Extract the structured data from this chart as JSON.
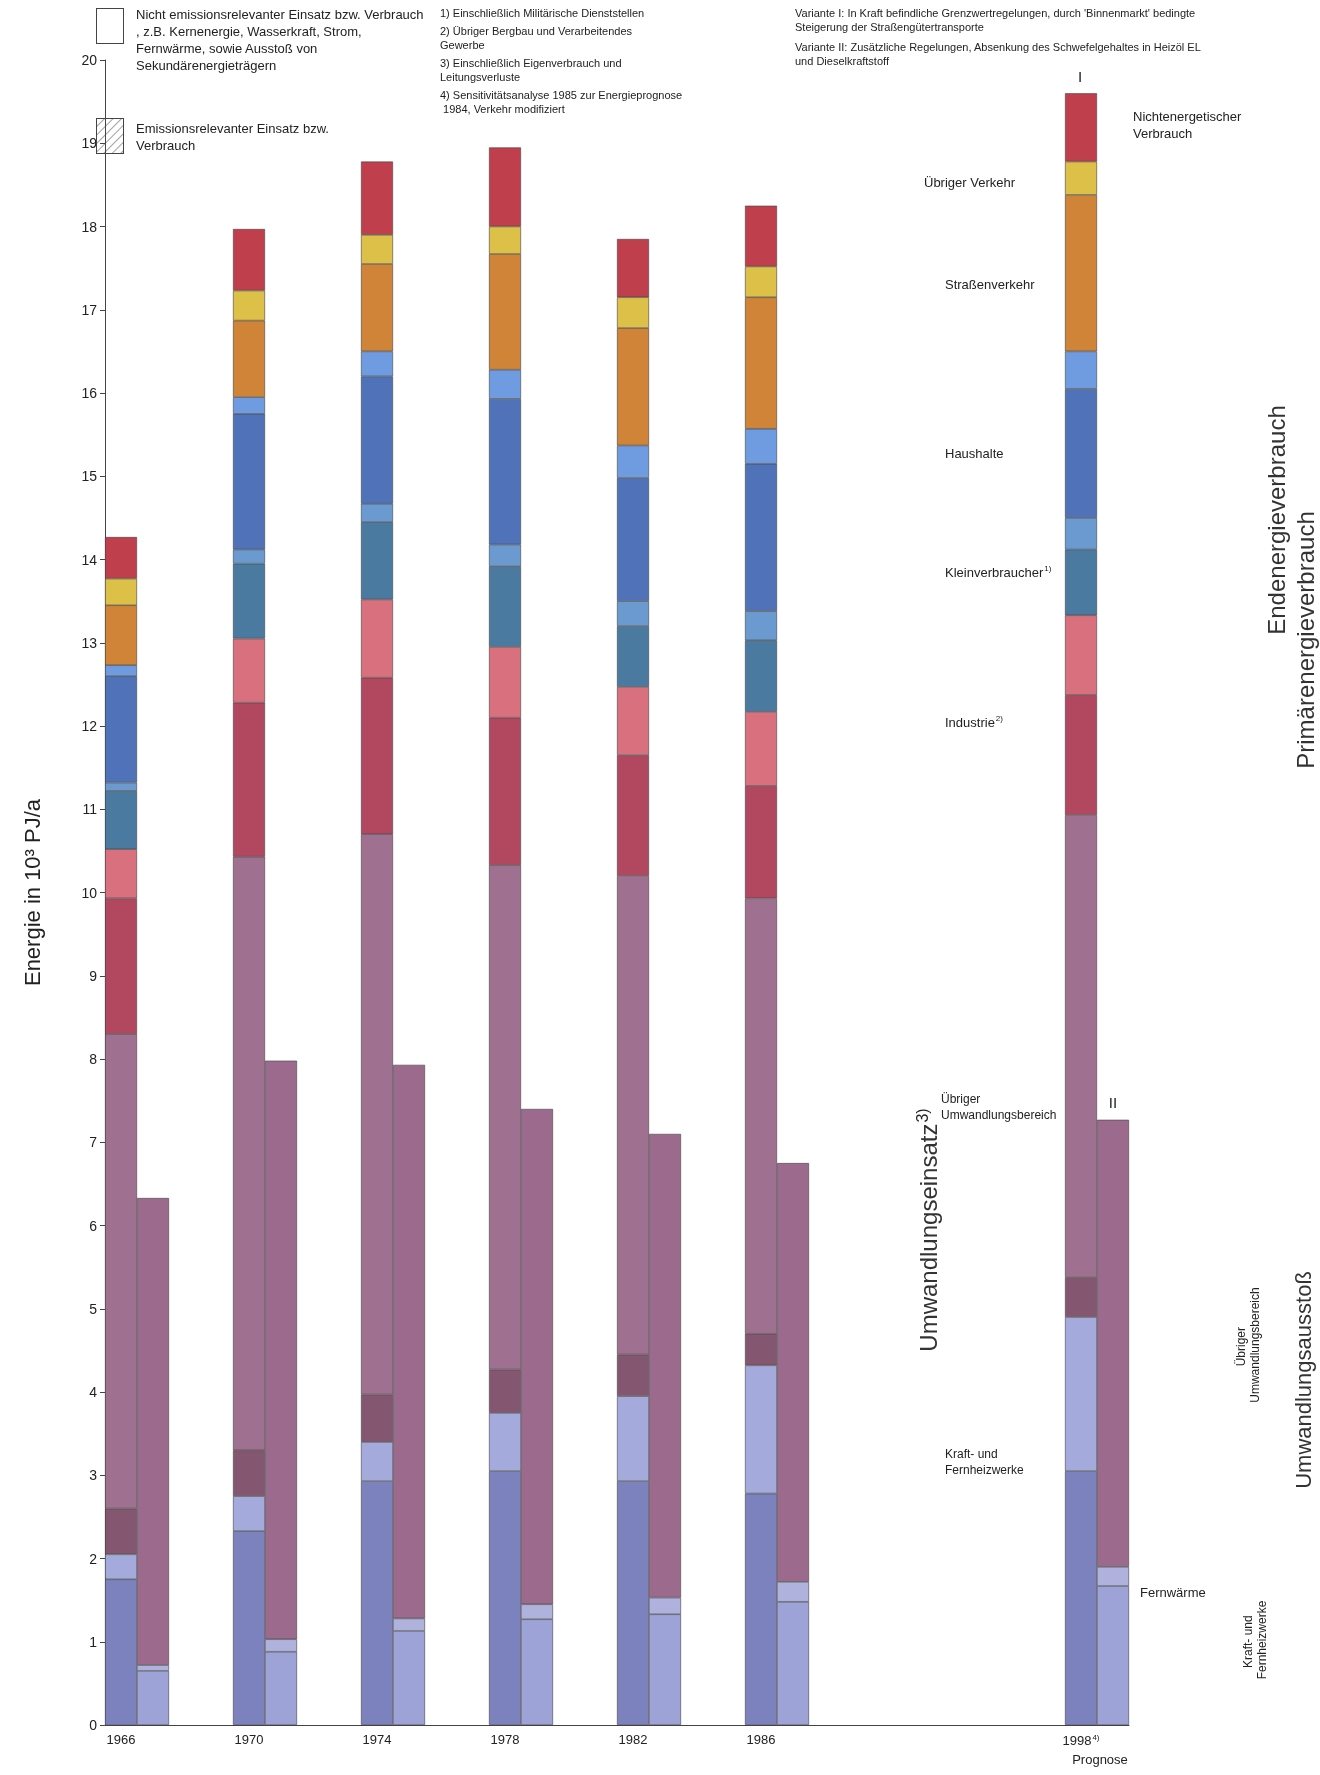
{
  "chart_data": {
    "type": "bar",
    "stacked": true,
    "ylabel": "Energie in 10³ PJ/a",
    "ylim": [
      0,
      20
    ],
    "yticks": [
      0,
      1,
      2,
      3,
      4,
      5,
      6,
      7,
      8,
      9,
      10,
      11,
      12,
      13,
      14,
      15,
      16,
      17,
      18,
      19,
      20
    ],
    "categories": [
      "1966",
      null,
      null,
      null,
      "1970",
      null,
      null,
      null,
      "1974",
      null,
      null,
      null,
      "1978",
      null,
      null,
      null,
      "1982",
      null,
      null,
      null,
      "1986",
      null,
      null,
      null,
      null,
      null,
      null,
      null,
      null,
      null,
      "1998$^{4)}$",
      null
    ],
    "series": [
      {
        "color": "#7b82bd",
        "values": [
          1.75,
          null,
          null,
          null,
          2.33,
          null,
          null,
          null,
          2.93,
          null,
          null,
          null,
          3.05,
          null,
          null,
          null,
          2.93,
          null,
          null,
          null,
          2.78,
          null,
          null,
          null,
          null,
          null,
          null,
          null,
          null,
          null,
          3.05,
          null
        ]
      },
      {
        "color": "#a4aadb",
        "values": [
          0.3,
          null,
          null,
          null,
          0.42,
          null,
          null,
          null,
          0.47,
          null,
          null,
          null,
          0.7,
          null,
          null,
          null,
          1.02,
          null,
          null,
          null,
          1.54,
          null,
          null,
          null,
          null,
          null,
          null,
          null,
          null,
          null,
          1.85,
          null
        ]
      },
      {
        "color": "#85566f",
        "values": [
          0.55,
          null,
          null,
          null,
          0.55,
          null,
          null,
          null,
          0.57,
          null,
          null,
          null,
          0.52,
          null,
          null,
          null,
          0.5,
          null,
          null,
          null,
          0.38,
          null,
          null,
          null,
          null,
          null,
          null,
          null,
          null,
          null,
          0.48,
          null
        ]
      },
      {
        "color": "#a07090",
        "values": [
          5.7,
          null,
          null,
          null,
          7.13,
          null,
          null,
          null,
          6.73,
          null,
          null,
          null,
          6.06,
          null,
          null,
          null,
          5.75,
          null,
          null,
          null,
          5.23,
          null,
          null,
          null,
          null,
          null,
          null,
          null,
          null,
          null,
          5.55,
          null
        ]
      },
      {
        "color": "#b24860",
        "values": [
          1.63,
          null,
          null,
          null,
          1.85,
          null,
          null,
          null,
          1.88,
          null,
          null,
          null,
          1.77,
          null,
          null,
          null,
          1.45,
          null,
          null,
          null,
          1.35,
          null,
          null,
          null,
          null,
          null,
          null,
          null,
          null,
          null,
          1.44,
          null
        ]
      },
      {
        "color": "#d8707e",
        "values": [
          0.59,
          null,
          null,
          null,
          0.77,
          null,
          null,
          null,
          0.94,
          null,
          null,
          null,
          0.85,
          null,
          null,
          null,
          0.82,
          null,
          null,
          null,
          0.89,
          null,
          null,
          null,
          null,
          null,
          null,
          null,
          null,
          null,
          0.96,
          null
        ]
      },
      {
        "color": "#4a7aa0",
        "values": [
          0.7,
          null,
          null,
          null,
          0.9,
          null,
          null,
          null,
          0.93,
          null,
          null,
          null,
          0.97,
          null,
          null,
          null,
          0.73,
          null,
          null,
          null,
          0.86,
          null,
          null,
          null,
          null,
          null,
          null,
          null,
          null,
          null,
          0.79,
          null
        ]
      },
      {
        "color": "#6a9ad0",
        "values": [
          0.1,
          null,
          null,
          null,
          0.17,
          null,
          null,
          null,
          0.22,
          null,
          null,
          null,
          0.26,
          null,
          null,
          null,
          0.3,
          null,
          null,
          null,
          0.35,
          null,
          null,
          null,
          null,
          null,
          null,
          null,
          null,
          null,
          0.38,
          null
        ]
      },
      {
        "color": "#4f72b8",
        "values": [
          1.28,
          null,
          null,
          null,
          1.63,
          null,
          null,
          null,
          1.53,
          null,
          null,
          null,
          1.75,
          null,
          null,
          null,
          1.48,
          null,
          null,
          null,
          1.77,
          null,
          null,
          null,
          null,
          null,
          null,
          null,
          null,
          null,
          1.55,
          null
        ]
      },
      {
        "color": "#6f9be0",
        "values": [
          0.13,
          null,
          null,
          null,
          0.2,
          null,
          null,
          null,
          0.3,
          null,
          null,
          null,
          0.35,
          null,
          null,
          null,
          0.39,
          null,
          null,
          null,
          0.42,
          null,
          null,
          null,
          null,
          null,
          null,
          null,
          null,
          null,
          0.45,
          null
        ]
      },
      {
        "color": "#cf8438",
        "values": [
          0.72,
          null,
          null,
          null,
          0.92,
          null,
          null,
          null,
          1.05,
          null,
          null,
          null,
          1.39,
          null,
          null,
          null,
          1.41,
          null,
          null,
          null,
          1.58,
          null,
          null,
          null,
          null,
          null,
          null,
          null,
          null,
          null,
          1.88,
          null
        ]
      },
      {
        "color": "#dcc048",
        "values": [
          0.32,
          null,
          null,
          null,
          0.36,
          null,
          null,
          null,
          0.35,
          null,
          null,
          null,
          0.33,
          null,
          null,
          null,
          0.37,
          null,
          null,
          null,
          0.37,
          null,
          null,
          null,
          null,
          null,
          null,
          null,
          null,
          null,
          0.4,
          null
        ]
      },
      {
        "color": "#bf3f4d",
        "values": [
          0.5,
          null,
          null,
          null,
          0.74,
          null,
          null,
          null,
          0.88,
          null,
          null,
          null,
          0.95,
          null,
          null,
          null,
          0.7,
          null,
          null,
          null,
          0.73,
          null,
          null,
          null,
          null,
          null,
          null,
          null,
          null,
          null,
          0.82,
          null
        ]
      },
      {
        "color": "#9da3d6",
        "values": [
          null,
          0.65,
          null,
          null,
          null,
          0.88,
          null,
          null,
          null,
          1.13,
          null,
          null,
          null,
          1.27,
          null,
          null,
          null,
          1.33,
          null,
          null,
          null,
          1.48,
          null,
          null,
          null,
          null,
          null,
          null,
          null,
          null,
          null,
          1.67
        ]
      },
      {
        "color": "#aeb2dc",
        "values": [
          null,
          0.07,
          null,
          null,
          null,
          0.15,
          null,
          null,
          null,
          0.15,
          null,
          null,
          null,
          0.18,
          null,
          null,
          null,
          0.2,
          null,
          null,
          null,
          0.24,
          null,
          null,
          null,
          null,
          null,
          null,
          null,
          null,
          null,
          0.23
        ]
      },
      {
        "color": "#9b6a8d",
        "values": [
          null,
          5.61,
          null,
          null,
          null,
          6.95,
          null,
          null,
          null,
          6.65,
          null,
          null,
          null,
          5.95,
          null,
          null,
          null,
          5.57,
          null,
          null,
          null,
          5.03,
          null,
          null,
          null,
          null,
          null,
          null,
          null,
          null,
          null,
          5.37
        ]
      }
    ],
    "annotations": [
      "Nicht emissionsrelevanter Einsatz bzw. Verbrauch, z.B. Kernenergie, Wasserkraft, Strom, Fernwärme, sowie Ausstoß von Sekundärenergieträgern",
      "Emissionsrelevanter Einsatz bzw. Verbrauch",
      "1) Einschließlich Militärische Dienststellen",
      "2) Übriger Bergbau und Verarbeitendes Gewerbe",
      "3) Einschließlich Eigenverbrauch und Leitungsverluste",
      "4) Sensitivitätsanalyse 1985 zur Energieprognose 1984, Verkehr modifiziert",
      "Variante I: In Kraft befindliche Grenzwertregelungen, durch 'Binnenmarkt' bedingte Steigerung der Straßengütertransporte",
      "Variante II: Zusätzliche Regelungen, Absenkung des Schwefelgehaltes in Heizöl EL und Dieselkraftstoff",
      "Endenergieverbrauch",
      "Primärenergieverbrauch",
      "Umwandlungseinsatz$^{3)}$",
      "Umwandlungsausstoß",
      "Übriger Umwandlungsbereich",
      "Kraft- und Fernheizwerke",
      "Prognose",
      "I",
      "II",
      "Nichtenergetischer Verbrauch",
      "Übriger Verkehr",
      "Straßenverkehr",
      "Haushalte",
      "Kleinverbraucher$^{1)}$",
      "Industrie$^{2)}$",
      "Übriger Umwandlungsbereich",
      "Kraft- und Fernheizwerke",
      "Fernwärme"
    ]
  }
}
